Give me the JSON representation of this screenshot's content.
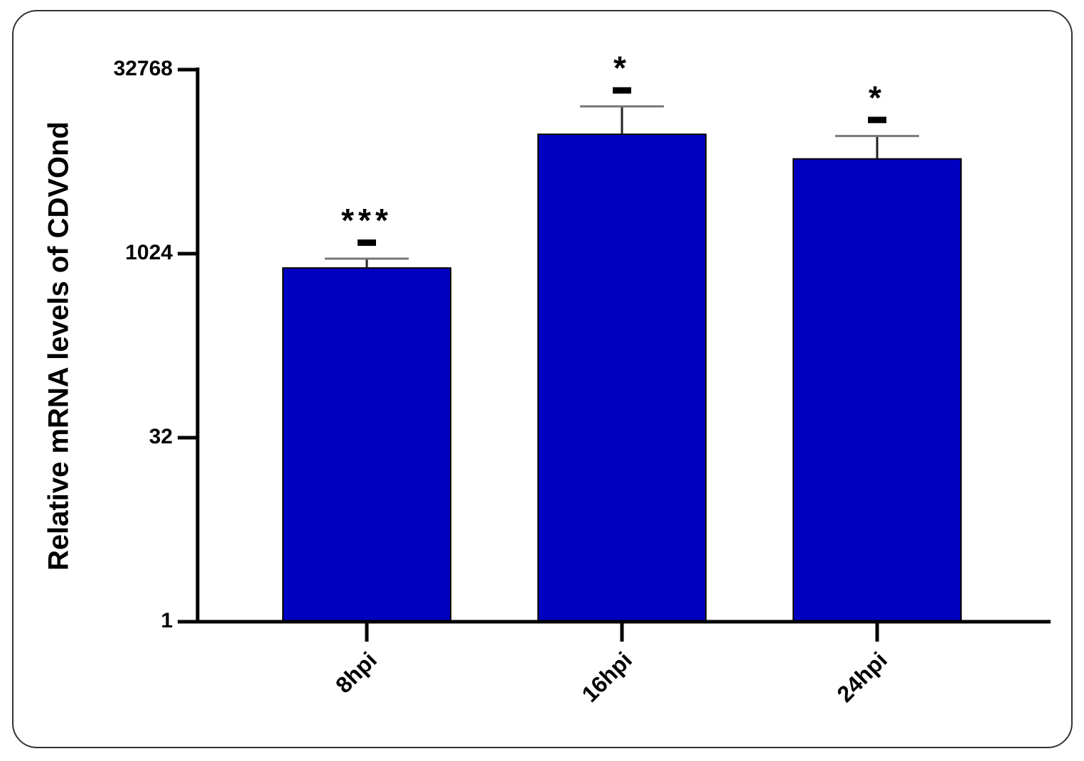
{
  "chart_data": {
    "type": "bar",
    "y_label": "Relative mRNA levels of CDVOnd",
    "categories": [
      "8hpi",
      "16hpi",
      "24hpi"
    ],
    "values": [
      782,
      9700,
      6100
    ],
    "errors": [
      150,
      6700,
      3300
    ],
    "annotations": [
      "***",
      "*",
      "*"
    ],
    "color": "#0000c0",
    "y_scale": "log",
    "log_base": 2,
    "ylim": [
      1,
      32768
    ],
    "yticks": [
      1,
      32,
      1024,
      32768
    ]
  }
}
